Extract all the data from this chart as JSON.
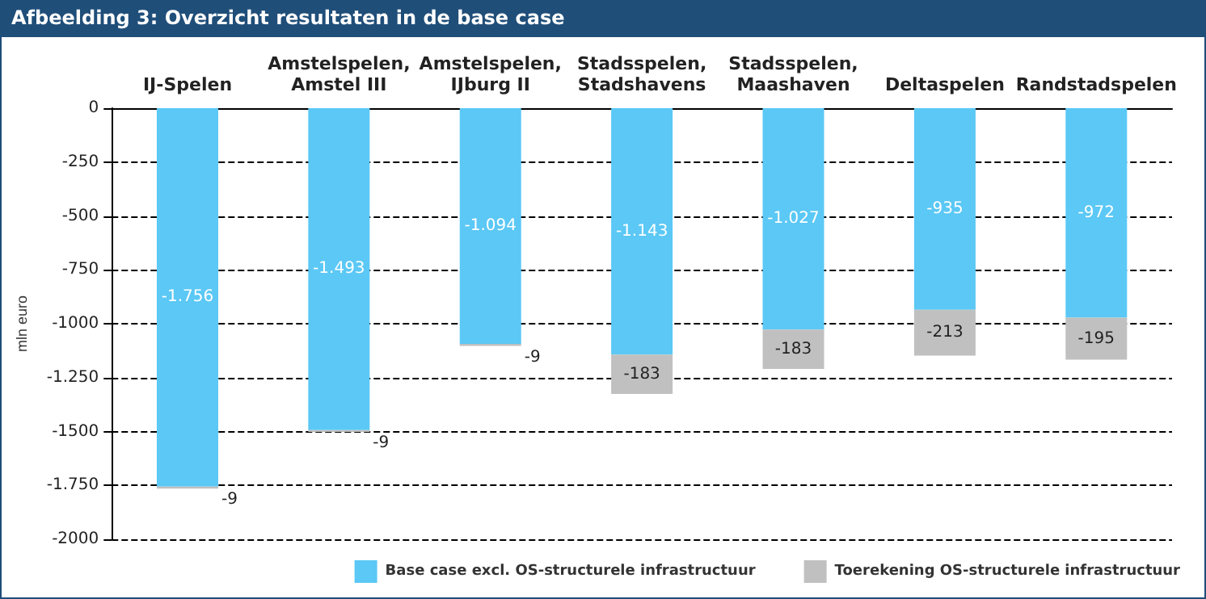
{
  "chart_data": {
    "type": "bar",
    "title": "Afbeelding 3: Overzicht resultaten in de base case",
    "ylabel": "mln euro",
    "categories": [
      "IJ-Spelen",
      "Amstelspelen,\nAmstel III",
      "Amstelspelen,\nIJburg II",
      "Stadsspelen,\nStadshavens",
      "Stadsspelen,\nMaashaven",
      "Deltaspelen",
      "Randstadspelen"
    ],
    "stacked": true,
    "series": [
      {
        "name": "Base case excl. OS-structurele infrastructuur",
        "color": "#5bc8f5",
        "values": [
          -1756,
          -1493,
          -1094,
          -1143,
          -1027,
          -935,
          -972
        ],
        "value_labels": [
          "-1.756",
          "-1.493",
          "-1.094",
          "-1.143",
          "-1.027",
          "-935",
          "-972"
        ]
      },
      {
        "name": "Toerekening OS-structurele infrastructuur",
        "color": "#c0c0c0",
        "values": [
          -9,
          -9,
          -9,
          -183,
          -183,
          -213,
          -195
        ],
        "value_labels": [
          "-9",
          "-9",
          "-9",
          "-183",
          "-183",
          "-213",
          "-195"
        ]
      }
    ],
    "ylim": [
      -2000,
      0
    ],
    "yticks": [
      {
        "value": 0,
        "label": "0"
      },
      {
        "value": -250,
        "label": "-250"
      },
      {
        "value": -500,
        "label": "-500"
      },
      {
        "value": -750,
        "label": "-750"
      },
      {
        "value": -1000,
        "label": "-1000"
      },
      {
        "value": -1250,
        "label": "-1.250"
      },
      {
        "value": -1500,
        "label": "-1500"
      },
      {
        "value": -1750,
        "label": "-1.750"
      },
      {
        "value": -2000,
        "label": "-2000"
      }
    ],
    "grid": "y",
    "legend": "bottom right"
  }
}
